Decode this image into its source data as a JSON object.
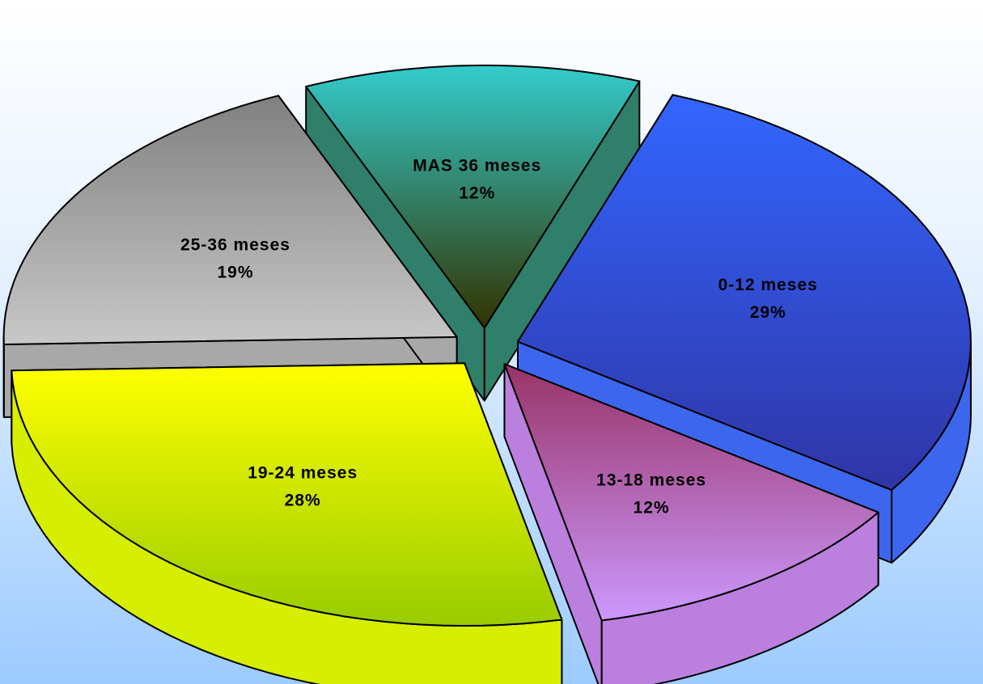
{
  "chart_data": {
    "type": "pie",
    "style": "3d-exploded",
    "slices": [
      {
        "category": "0-12 meses",
        "value": 29,
        "percent_label": "29%",
        "color_top": "#3366ff",
        "color_bottom": "#2f35a6",
        "side_color": "#3d66ee"
      },
      {
        "category": "13-18 meses",
        "value": 12,
        "percent_label": "12%",
        "color_top": "#993366",
        "color_bottom": "#cc99ff",
        "side_color": "#bb7fdd"
      },
      {
        "category": "19-24 meses",
        "value": 28,
        "percent_label": "28%",
        "color_top": "#ffff00",
        "color_bottom": "#99cc00",
        "side_color": "#d6ee00"
      },
      {
        "category": "25-36 meses",
        "value": 19,
        "percent_label": "19%",
        "color_top": "#808080",
        "color_bottom": "#c8c8c8",
        "side_color": "#a8a8a8"
      },
      {
        "category": "MAS  36 meses",
        "value": 12,
        "percent_label": "12%",
        "color_top": "#33cccc",
        "color_bottom": "#333300",
        "side_color": "#2f7f6a"
      }
    ],
    "legend": "none",
    "background": {
      "top": "#ffffff",
      "bottom": "#99ccff"
    }
  }
}
